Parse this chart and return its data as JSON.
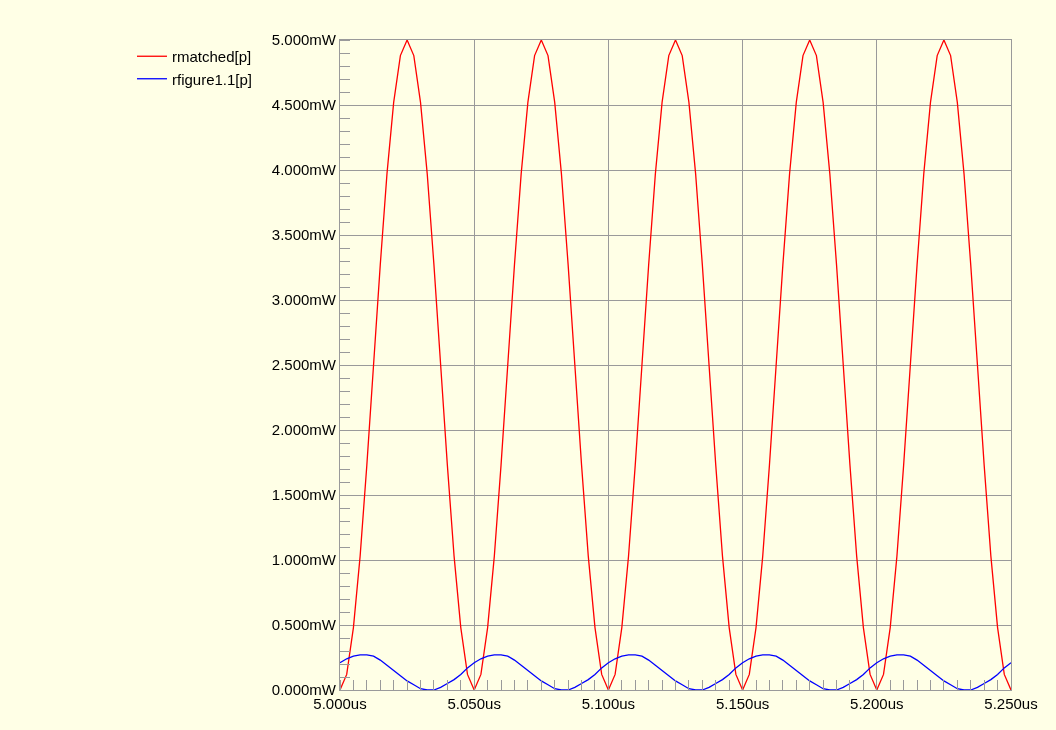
{
  "chart_data": {
    "type": "line",
    "x": [
      5,
      5.0025,
      5.005,
      5.0075,
      5.01,
      5.0125,
      5.015,
      5.0175,
      5.02,
      5.0225,
      5.025,
      5.0275,
      5.03,
      5.0325,
      5.035,
      5.0375,
      5.04,
      5.0425,
      5.045,
      5.0475,
      5.05,
      5.0525,
      5.055,
      5.0575,
      5.06,
      5.0625,
      5.065,
      5.0675,
      5.07,
      5.0725,
      5.075,
      5.0775,
      5.08,
      5.0825,
      5.085,
      5.0875,
      5.09,
      5.0925,
      5.095,
      5.0975,
      5.1,
      5.1025,
      5.105,
      5.1075,
      5.11,
      5.1125,
      5.115,
      5.1175,
      5.12,
      5.1225,
      5.125,
      5.1275,
      5.13,
      5.1325,
      5.135,
      5.1375,
      5.14,
      5.1425,
      5.145,
      5.1475,
      5.15,
      5.1525,
      5.155,
      5.1575,
      5.16,
      5.1625,
      5.165,
      5.1675,
      5.17,
      5.1725,
      5.175,
      5.1775,
      5.18,
      5.1825,
      5.185,
      5.1875,
      5.19,
      5.1925,
      5.195,
      5.1975,
      5.2,
      5.2025,
      5.205,
      5.2075,
      5.21,
      5.2125,
      5.215,
      5.2175,
      5.22,
      5.2225,
      5.225,
      5.2275,
      5.23,
      5.2325,
      5.235,
      5.2375,
      5.24,
      5.2425,
      5.245,
      5.2475,
      5.25
    ],
    "series": [
      {
        "name": "rmatched[p]",
        "color": "#ff0000",
        "values": [
          0,
          0.12,
          0.48,
          1.03,
          1.73,
          2.5,
          3.27,
          3.97,
          4.52,
          4.88,
          5,
          4.88,
          4.52,
          3.97,
          3.27,
          2.5,
          1.73,
          1.03,
          0.48,
          0.12,
          0,
          0.12,
          0.48,
          1.03,
          1.73,
          2.5,
          3.27,
          3.97,
          4.52,
          4.88,
          5,
          4.88,
          4.52,
          3.97,
          3.27,
          2.5,
          1.73,
          1.03,
          0.48,
          0.12,
          0,
          0.12,
          0.48,
          1.03,
          1.73,
          2.5,
          3.27,
          3.97,
          4.52,
          4.88,
          5,
          4.88,
          4.52,
          3.97,
          3.27,
          2.5,
          1.73,
          1.03,
          0.48,
          0.12,
          0,
          0.12,
          0.48,
          1.03,
          1.73,
          2.5,
          3.27,
          3.97,
          4.52,
          4.88,
          5,
          4.88,
          4.52,
          3.97,
          3.27,
          2.5,
          1.73,
          1.03,
          0.48,
          0.12,
          0,
          0.12,
          0.48,
          1.03,
          1.73,
          2.5,
          3.27,
          3.97,
          4.52,
          4.88,
          5,
          4.88,
          4.52,
          3.97,
          3.27,
          2.5,
          1.73,
          1.03,
          0.48,
          0.12,
          0
        ]
      },
      {
        "name": "rfigure1.1[p]",
        "color": "#0000ff",
        "values": [
          0.21,
          0.24,
          0.26,
          0.27,
          0.27,
          0.26,
          0.23,
          0.19,
          0.15,
          0.11,
          0.07,
          0.04,
          0.01,
          0,
          0,
          0.02,
          0.05,
          0.08,
          0.12,
          0.17,
          0.21,
          0.24,
          0.26,
          0.27,
          0.27,
          0.26,
          0.23,
          0.19,
          0.15,
          0.11,
          0.07,
          0.04,
          0.01,
          0,
          0,
          0.02,
          0.05,
          0.08,
          0.12,
          0.17,
          0.21,
          0.24,
          0.26,
          0.27,
          0.27,
          0.26,
          0.23,
          0.19,
          0.15,
          0.11,
          0.07,
          0.04,
          0.01,
          0,
          0,
          0.02,
          0.05,
          0.08,
          0.12,
          0.17,
          0.21,
          0.24,
          0.26,
          0.27,
          0.27,
          0.26,
          0.23,
          0.19,
          0.15,
          0.11,
          0.07,
          0.04,
          0.01,
          0,
          0,
          0.02,
          0.05,
          0.08,
          0.12,
          0.17,
          0.21,
          0.24,
          0.26,
          0.27,
          0.27,
          0.26,
          0.23,
          0.19,
          0.15,
          0.11,
          0.07,
          0.04,
          0.01,
          0,
          0,
          0.02,
          0.05,
          0.08,
          0.12,
          0.17,
          0.21
        ]
      }
    ],
    "xlim": [
      5,
      5.25
    ],
    "xticks": [
      {
        "value": 5,
        "label": "5.000us"
      },
      {
        "value": 5.05,
        "label": "5.050us"
      },
      {
        "value": 5.1,
        "label": "5.100us"
      },
      {
        "value": 5.15,
        "label": "5.150us"
      },
      {
        "value": 5.2,
        "label": "5.200us"
      },
      {
        "value": 5.25,
        "label": "5.250us"
      }
    ],
    "ylim": [
      0,
      5
    ],
    "yticks": [
      {
        "value": 0,
        "label": "0.000mW"
      },
      {
        "value": 0.5,
        "label": "0.500mW"
      },
      {
        "value": 1,
        "label": "1.000mW"
      },
      {
        "value": 1.5,
        "label": "1.500mW"
      },
      {
        "value": 2,
        "label": "2.000mW"
      },
      {
        "value": 2.5,
        "label": "2.500mW"
      },
      {
        "value": 3,
        "label": "3.000mW"
      },
      {
        "value": 3.5,
        "label": "3.500mW"
      },
      {
        "value": 4,
        "label": "4.000mW"
      },
      {
        "value": 4.5,
        "label": "4.500mW"
      },
      {
        "value": 5,
        "label": "5.000mW"
      }
    ],
    "grid": true,
    "legend": "top left",
    "marker": "none",
    "line_style": "solid"
  }
}
